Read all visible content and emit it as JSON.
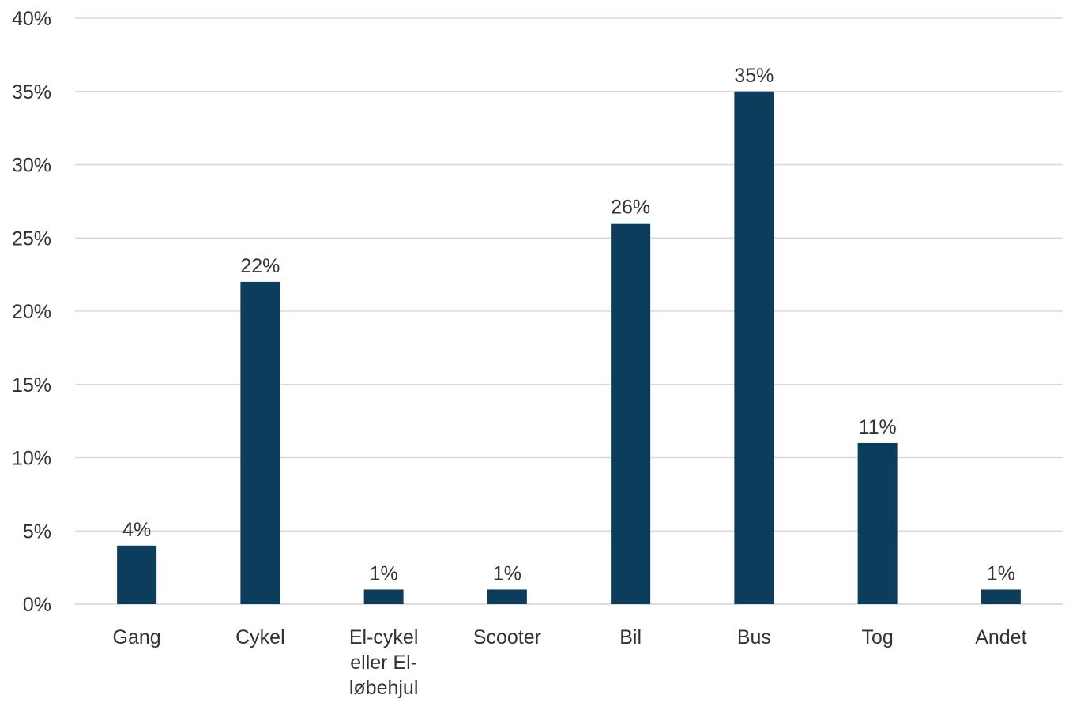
{
  "chart_data": {
    "type": "bar",
    "title": "",
    "xlabel": "",
    "ylabel": "",
    "categories": [
      [
        "Gang"
      ],
      [
        "Cykel"
      ],
      [
        "El-cykel",
        "eller El-",
        "løbehjul"
      ],
      [
        "Scooter"
      ],
      [
        "Bil"
      ],
      [
        "Bus"
      ],
      [
        "Tog"
      ],
      [
        "Andet"
      ]
    ],
    "values": [
      4,
      22,
      1,
      1,
      26,
      35,
      11,
      1
    ],
    "data_labels": [
      "4%",
      "22%",
      "1%",
      "1%",
      "26%",
      "35%",
      "11%",
      "1%"
    ],
    "ylim": [
      0,
      40
    ],
    "yticks": [
      0,
      5,
      10,
      15,
      20,
      25,
      30,
      35,
      40
    ],
    "ytick_labels": [
      "0%",
      "5%",
      "10%",
      "15%",
      "20%",
      "25%",
      "30%",
      "35%",
      "40%"
    ],
    "grid": true,
    "legend": "none",
    "colors": {
      "bar": "#0d3d5c",
      "grid": "#d9d9d9",
      "text": "#333333"
    }
  }
}
